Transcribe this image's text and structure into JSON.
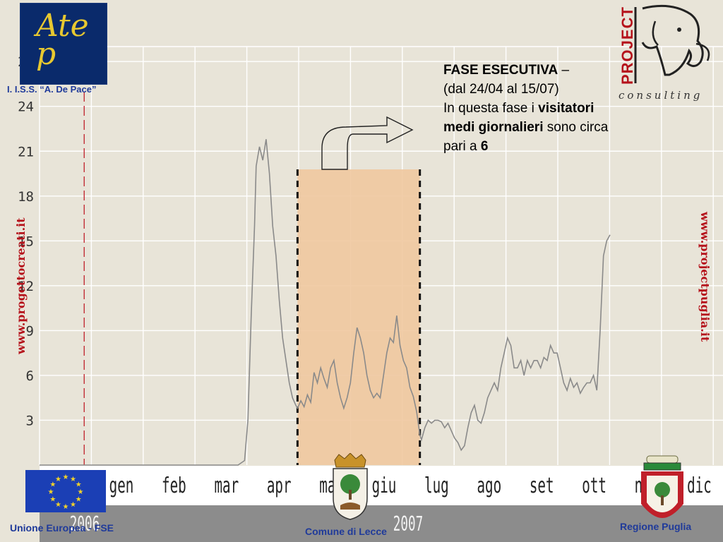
{
  "chart_data": {
    "type": "line",
    "y_ticks": [
      3,
      6,
      9,
      12,
      15,
      18,
      21,
      24,
      27
    ],
    "ylim": [
      0,
      28
    ],
    "months": [
      "gen",
      "feb",
      "mar",
      "apr",
      "mag",
      "giu",
      "lug",
      "ago",
      "set",
      "ott",
      "nov",
      "dic"
    ],
    "year_labels": [
      "2006",
      "2007"
    ],
    "x_unit": "days since 2006-12-15",
    "xlim": [
      0,
      380
    ],
    "grid": true,
    "series": [
      {
        "values": [
          [
            0,
            0
          ],
          [
            120,
            0
          ],
          [
            124,
            0.3
          ],
          [
            126,
            3
          ],
          [
            128,
            10
          ],
          [
            130,
            16
          ],
          [
            131,
            20
          ],
          [
            133,
            21.3
          ],
          [
            135,
            20.4
          ],
          [
            137,
            21.8
          ],
          [
            139,
            19.5
          ],
          [
            141,
            16
          ],
          [
            143,
            14
          ],
          [
            145,
            11
          ],
          [
            147,
            8.5
          ],
          [
            149,
            7
          ],
          [
            151,
            5.5
          ],
          [
            153,
            4.5
          ],
          [
            155,
            4
          ],
          [
            156,
            3.8
          ],
          [
            158,
            4.3
          ],
          [
            160,
            3.9
          ],
          [
            162,
            4.7
          ],
          [
            164,
            4.2
          ],
          [
            166,
            6.2
          ],
          [
            168,
            5.5
          ],
          [
            170,
            6.5
          ],
          [
            172,
            5.8
          ],
          [
            174,
            5.2
          ],
          [
            176,
            6.5
          ],
          [
            178,
            7
          ],
          [
            180,
            5.5
          ],
          [
            182,
            4.5
          ],
          [
            184,
            3.8
          ],
          [
            186,
            4.5
          ],
          [
            188,
            5.5
          ],
          [
            190,
            7.5
          ],
          [
            192,
            9.2
          ],
          [
            194,
            8.5
          ],
          [
            196,
            7.5
          ],
          [
            198,
            6
          ],
          [
            200,
            5
          ],
          [
            202,
            4.5
          ],
          [
            204,
            4.8
          ],
          [
            206,
            4.5
          ],
          [
            208,
            6
          ],
          [
            210,
            7.5
          ],
          [
            212,
            8.5
          ],
          [
            214,
            8.2
          ],
          [
            216,
            10
          ],
          [
            218,
            8
          ],
          [
            220,
            7
          ],
          [
            222,
            6.5
          ],
          [
            224,
            5.2
          ],
          [
            226,
            4.6
          ],
          [
            228,
            3.6
          ],
          [
            230,
            2
          ],
          [
            231,
            1.7
          ],
          [
            233,
            2.5
          ],
          [
            235,
            3
          ],
          [
            237,
            2.8
          ],
          [
            239,
            3
          ],
          [
            241,
            3
          ],
          [
            243,
            2.9
          ],
          [
            245,
            2.5
          ],
          [
            247,
            2.8
          ],
          [
            249,
            2.3
          ],
          [
            251,
            1.8
          ],
          [
            253,
            1.5
          ],
          [
            255,
            1
          ],
          [
            257,
            1.3
          ],
          [
            259,
            2.5
          ],
          [
            261,
            3.5
          ],
          [
            263,
            4
          ],
          [
            265,
            3
          ],
          [
            267,
            2.8
          ],
          [
            269,
            3.5
          ],
          [
            271,
            4.5
          ],
          [
            273,
            5
          ],
          [
            275,
            5.5
          ],
          [
            277,
            5
          ],
          [
            279,
            6.5
          ],
          [
            281,
            7.5
          ],
          [
            283,
            8.5
          ],
          [
            285,
            8
          ],
          [
            287,
            6.5
          ],
          [
            289,
            6.5
          ],
          [
            291,
            7
          ],
          [
            293,
            6
          ],
          [
            295,
            7
          ],
          [
            297,
            6.5
          ],
          [
            299,
            7
          ],
          [
            301,
            7
          ],
          [
            303,
            6.5
          ],
          [
            305,
            7.2
          ],
          [
            307,
            7
          ],
          [
            309,
            8
          ],
          [
            311,
            7.5
          ],
          [
            313,
            7.5
          ],
          [
            315,
            6.5
          ],
          [
            317,
            5.5
          ],
          [
            319,
            5
          ],
          [
            321,
            5.8
          ],
          [
            323,
            5.2
          ],
          [
            325,
            5.5
          ],
          [
            327,
            4.8
          ],
          [
            329,
            5.2
          ],
          [
            331,
            5.5
          ],
          [
            333,
            5.5
          ],
          [
            335,
            6
          ],
          [
            337,
            5
          ],
          [
            339,
            9
          ],
          [
            341,
            14
          ],
          [
            343,
            15
          ],
          [
            345,
            15.4
          ]
        ]
      }
    ],
    "highlight": {
      "x_start": 156,
      "x_end": 230,
      "color": "#f0c8a0"
    },
    "vline_red": 27
  },
  "annotation": {
    "title_bold": "FASE ESECUTIVA",
    "title_dash": " –",
    "line2": "(dal 24/04 al 15/07)",
    "line3_a": "In questa fase i ",
    "line3_b": "visitatori",
    "line4_b": "medi giornalieri",
    "line4_a": " sono circa",
    "line5_a": "pari a ",
    "line5_b": "6"
  },
  "logos": {
    "atep_letters": "Ate p",
    "school": "I. I.S.S. “A. De Pace”",
    "project_word": "PROJECT",
    "consulting": "consulting",
    "site_left": "www.progettocreati.it",
    "site_right": "www.projectpuglia.it"
  },
  "bottom": {
    "eu_label": "Unione Europea - FSE",
    "lecce_label": "Comune di Lecce",
    "puglia_label": "Regione Puglia"
  },
  "colors": {
    "background": "#e8e4d8",
    "line": "#8a8a8a",
    "highlight": "#f0c8a0",
    "red": "#b5121b",
    "blue": "#1f3a9a"
  }
}
